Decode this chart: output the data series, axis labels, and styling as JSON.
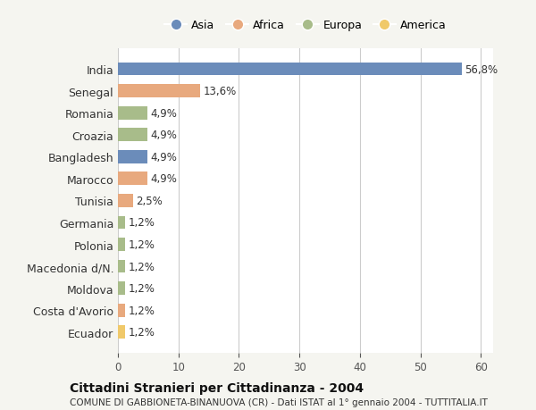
{
  "countries": [
    "India",
    "Senegal",
    "Romania",
    "Croazia",
    "Bangladesh",
    "Marocco",
    "Tunisia",
    "Germania",
    "Polonia",
    "Macedonia d/N.",
    "Moldova",
    "Costa d'Avorio",
    "Ecuador"
  ],
  "values": [
    56.8,
    13.6,
    4.9,
    4.9,
    4.9,
    4.9,
    2.5,
    1.2,
    1.2,
    1.2,
    1.2,
    1.2,
    1.2
  ],
  "labels": [
    "56,8%",
    "13,6%",
    "4,9%",
    "4,9%",
    "4,9%",
    "4,9%",
    "2,5%",
    "1,2%",
    "1,2%",
    "1,2%",
    "1,2%",
    "1,2%",
    "1,2%"
  ],
  "continents": [
    "Asia",
    "Africa",
    "Europa",
    "Europa",
    "Asia",
    "Africa",
    "Africa",
    "Europa",
    "Europa",
    "Europa",
    "Europa",
    "Africa",
    "America"
  ],
  "continent_colors": {
    "Asia": "#6b8cba",
    "Africa": "#e8a97e",
    "Europa": "#a8bc8a",
    "America": "#f0c96a"
  },
  "legend_order": [
    "Asia",
    "Africa",
    "Europa",
    "America"
  ],
  "title": "Cittadini Stranieri per Cittadinanza - 2004",
  "subtitle": "COMUNE DI GABBIONETA-BINANUOVA (CR) - Dati ISTAT al 1° gennaio 2004 - TUTTITALIA.IT",
  "xlim": [
    0,
    62
  ],
  "xticks": [
    0,
    10,
    20,
    30,
    40,
    50,
    60
  ],
  "background_color": "#f5f5f0",
  "bar_background": "#ffffff",
  "grid_color": "#cccccc"
}
